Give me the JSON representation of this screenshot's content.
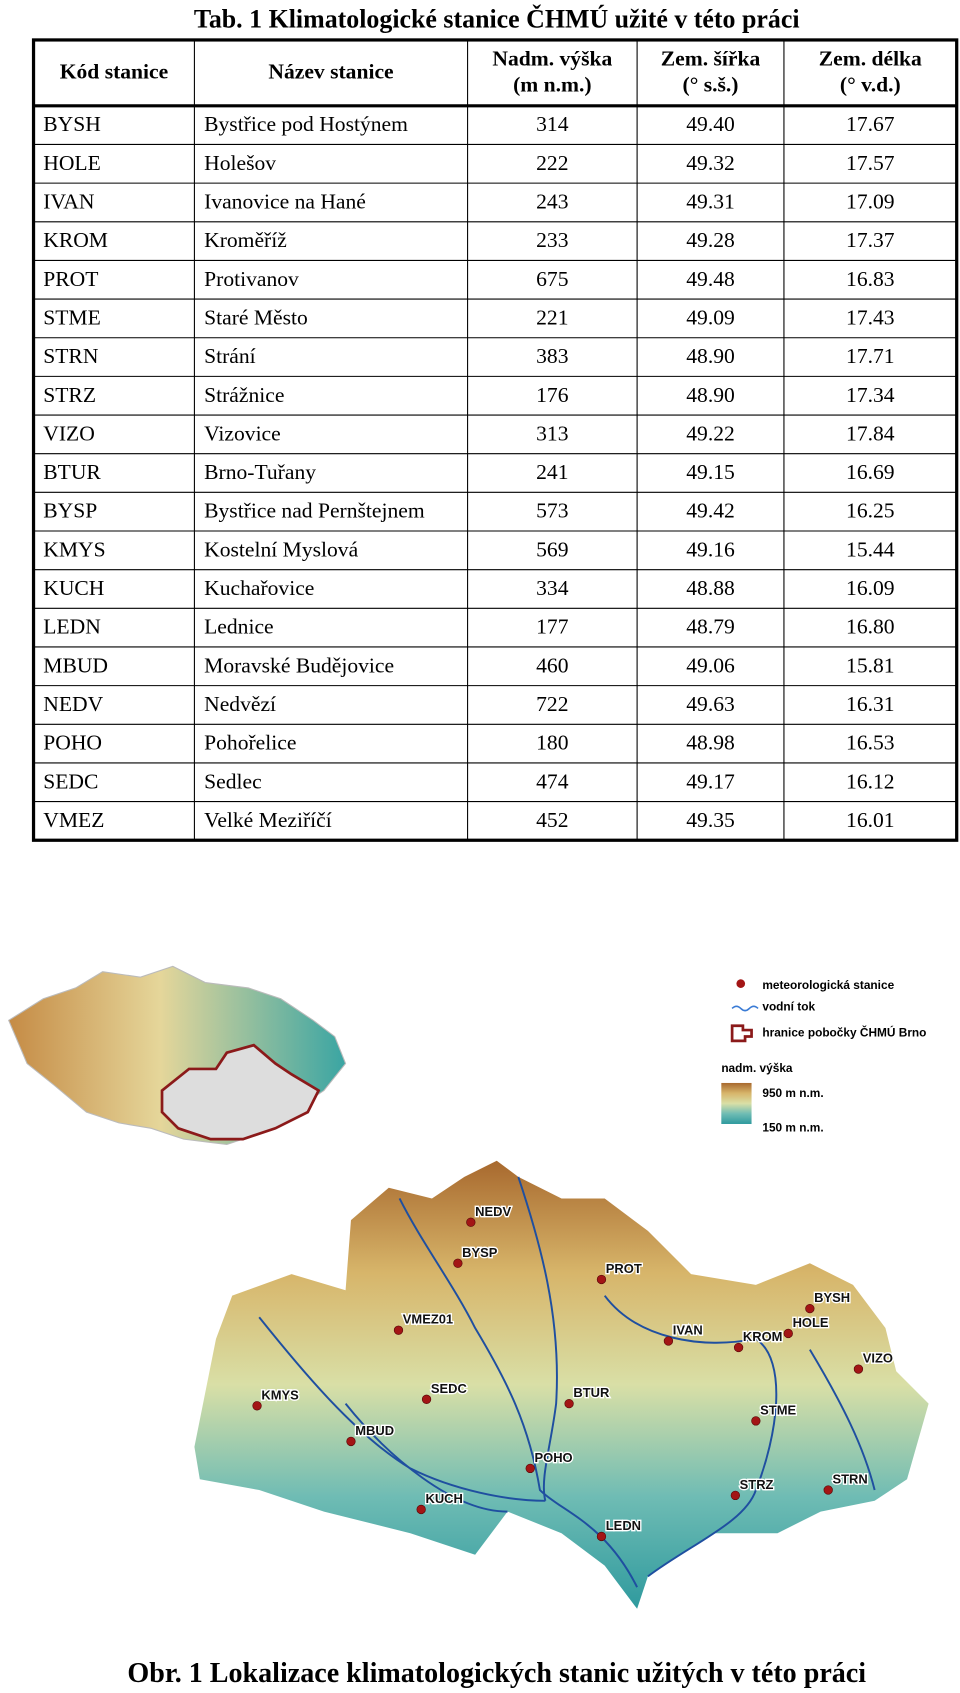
{
  "table": {
    "title": "Tab. 1 Klimatologické stanice ČHMÚ užité v této práci",
    "headers": [
      [
        "Kód stanice"
      ],
      [
        "Název stanice"
      ],
      [
        "Nadm. výška",
        "(m n.m.)"
      ],
      [
        "Zem. šířka",
        "(° s.š.)"
      ],
      [
        "Zem. délka",
        "(° v.d.)"
      ]
    ],
    "rows": [
      [
        "BYSH",
        "Bystřice pod Hostýnem",
        "314",
        "49.40",
        "17.67"
      ],
      [
        "HOLE",
        "Holešov",
        "222",
        "49.32",
        "17.57"
      ],
      [
        "IVAN",
        "Ivanovice na Hané",
        "243",
        "49.31",
        "17.09"
      ],
      [
        "KROM",
        "Kroměříž",
        "233",
        "49.28",
        "17.37"
      ],
      [
        "PROT",
        "Protivanov",
        "675",
        "49.48",
        "16.83"
      ],
      [
        "STME",
        "Staré Město",
        "221",
        "49.09",
        "17.43"
      ],
      [
        "STRN",
        "Strání",
        "383",
        "48.90",
        "17.71"
      ],
      [
        "STRZ",
        "Strážnice",
        "176",
        "48.90",
        "17.34"
      ],
      [
        "VIZO",
        "Vizovice",
        "313",
        "49.22",
        "17.84"
      ],
      [
        "BTUR",
        "Brno-Tuřany",
        "241",
        "49.15",
        "16.69"
      ],
      [
        "BYSP",
        "Bystřice nad Pernštejnem",
        "573",
        "49.42",
        "16.25"
      ],
      [
        "KMYS",
        "Kostelní Myslová",
        "569",
        "49.16",
        "15.44"
      ],
      [
        "KUCH",
        "Kuchařovice",
        "334",
        "48.88",
        "16.09"
      ],
      [
        "LEDN",
        "Lednice",
        "177",
        "48.79",
        "16.80"
      ],
      [
        "MBUD",
        "Moravské Budějovice",
        "460",
        "49.06",
        "15.81"
      ],
      [
        "NEDV",
        "Nedvězí",
        "722",
        "49.63",
        "16.31"
      ],
      [
        "POHO",
        "Pohořelice",
        "180",
        "48.98",
        "16.53"
      ],
      [
        "SEDC",
        "Sedlec",
        "474",
        "49.17",
        "16.12"
      ],
      [
        "VMEZ",
        "Velké Meziříčí",
        "452",
        "49.35",
        "16.01"
      ]
    ]
  },
  "map": {
    "legend": [
      "meteorologická stanice",
      "vodní tok",
      "hranice pobočky ČHMÚ Brno",
      "nadm. výška",
      "950 m n.m.",
      "150 m n.m."
    ],
    "stations": [
      "NEDV",
      "BYSP",
      "PROT",
      "VMEZ01",
      "IVAN",
      "KROM",
      "HOLE",
      "BYSH",
      "VIZO",
      "KMYS",
      "SEDC",
      "BTUR",
      "MBUD",
      "STME",
      "POHO",
      "STRZ",
      "STRN",
      "KUCH",
      "LEDN"
    ]
  },
  "caption": "Obr. 1 Lokalizace klimatologických stanic užitých v této práci"
}
